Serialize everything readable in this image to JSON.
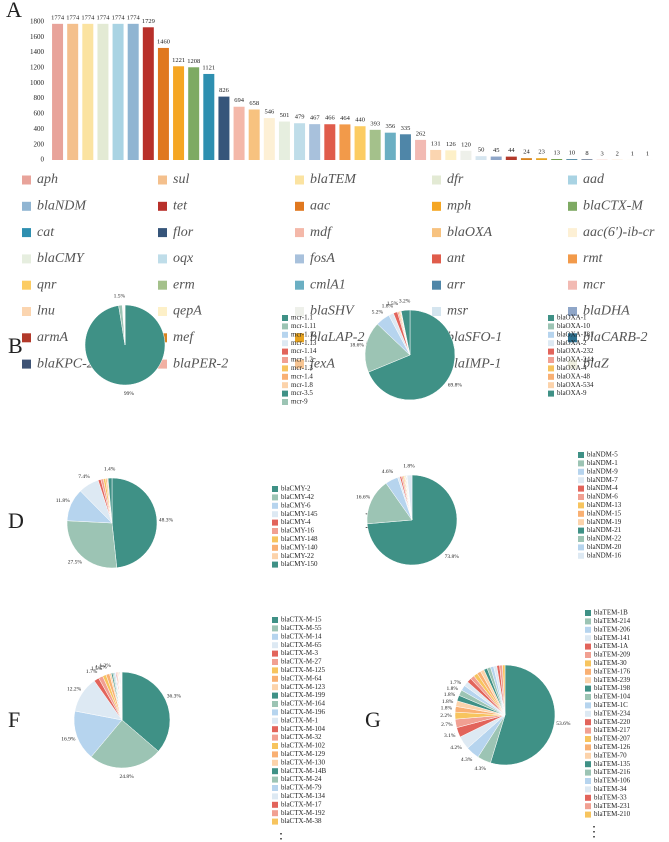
{
  "chart_data": [
    {
      "type": "bar",
      "label": "A",
      "categories": [
        "aph",
        "sul",
        "blaTEM",
        "dfr",
        "aad",
        "blaNDM",
        "tet",
        "aac",
        "mph",
        "blaCTX-M",
        "cat",
        "flor",
        "mdf",
        "blaOXA",
        "aac(6')-ib-cr",
        "blaCMY",
        "oqx",
        "fosA",
        "ant",
        "rmt",
        "qnr",
        "erm",
        "cmlA1",
        "arr",
        "mcr",
        "lnu",
        "qepA",
        "blaSHV",
        "msr",
        "blaDHA",
        "armA",
        "mef",
        "blaLAP-2",
        "blaSFO-1",
        "blaCARB-2",
        "blaKPC-2",
        "blaPER-2",
        "fexA",
        "blaIMP-1",
        "blaZ"
      ],
      "values": [
        1774,
        1774,
        1774,
        1774,
        1774,
        1774,
        1729,
        1460,
        1221,
        1208,
        1121,
        826,
        694,
        658,
        546,
        501,
        479,
        467,
        466,
        464,
        440,
        393,
        356,
        335,
        262,
        131,
        126,
        120,
        50,
        45,
        44,
        24,
        23,
        13,
        10,
        8,
        3,
        2,
        1,
        1
      ],
      "colors": [
        "#e8a39a",
        "#f4c08d",
        "#fbe3a1",
        "#e3ead4",
        "#a9d3e3",
        "#90b5d2",
        "#b8302a",
        "#e0781f",
        "#f5a623",
        "#7eaa63",
        "#2e8fb0",
        "#36557a",
        "#f4b8a9",
        "#f7c27f",
        "#fdf0d5",
        "#e6eedf",
        "#bfdde9",
        "#a8c1dc",
        "#e05c4b",
        "#f29a4a",
        "#fccc62",
        "#a4c18b",
        "#6bafc3",
        "#4f86a8",
        "#f2bab3",
        "#fbd5b0",
        "#fdf0c8",
        "#eef0ea",
        "#d5e5ef",
        "#8fa6c8",
        "#b2392a",
        "#d8831e",
        "#e6a21f",
        "#73a14f",
        "#2e7291",
        "#3e5375",
        "#f1b0a2",
        "#f7c593",
        "#fdeec5",
        "#eeeee0"
      ],
      "ylim": [
        0,
        1850
      ],
      "yticks": [
        0,
        200,
        400,
        600,
        800,
        1000,
        1200,
        1400,
        1600,
        1800
      ]
    },
    {
      "type": "pie",
      "label": "B",
      "categories": [
        "mcr-1.1",
        "mcr-1.11",
        "mcr-1.12",
        "mcr-1.13",
        "mcr-1.14",
        "mcr-1.2",
        "mcr-1.3",
        "mcr-1.4",
        "mcr-1.8",
        "mcr-3.5",
        "mcr-9"
      ],
      "values": [
        99,
        1.5,
        0.2,
        0.2,
        0.1,
        0.1,
        0.1,
        0.1,
        0.1,
        0.1,
        0.1
      ],
      "value_labels": [
        "99%",
        "1.5%",
        null,
        null,
        null,
        null,
        null,
        null,
        null,
        null,
        null
      ],
      "colors": [
        "#3f9186",
        "#9cc4b4",
        "#b6d4ee",
        "#dde9f3",
        "#e2645b",
        "#f1a092",
        "#f7c45e",
        "#f9b073",
        "#fcd3ab"
      ]
    },
    {
      "type": "pie",
      "label": "C",
      "categories": [
        "blaOXA-1",
        "blaOXA-10",
        "blaOXA-181",
        "blaOXA-2",
        "blaOXA-232",
        "blaOXA-244",
        "blaOXA-4",
        "blaOXA-48",
        "blaOXA-534",
        "blaOXA-9"
      ],
      "values": [
        69.8,
        18.6,
        5.2,
        1.8,
        1.5,
        0.5,
        0.4,
        0.3,
        0.2,
        3.2
      ],
      "value_labels": [
        "69.8%",
        "18.6%",
        "5.2%",
        "1.8%",
        "1.5%",
        null,
        null,
        null,
        null,
        "3.2%"
      ],
      "colors": [
        "#3f9186",
        "#9cc4b4",
        "#b6d4ee",
        "#dde9f3",
        "#e2645b",
        "#f1a092",
        "#f7c45e",
        "#f9b073",
        "#fcd3ab"
      ]
    },
    {
      "type": "pie",
      "label": "D",
      "categories": [
        "blaCMY-2",
        "blaCMY-42",
        "blaCMY-6",
        "blaCMY-145",
        "blaCMY-4",
        "blaCMY-16",
        "blaCMY-148",
        "blaCMY-140",
        "blaCMY-22",
        "blaCMY-150"
      ],
      "values": [
        48.3,
        27.5,
        11.8,
        7.4,
        1.0,
        0.9,
        0.8,
        0.5,
        0.4,
        1.4
      ],
      "value_labels": [
        "48.3%",
        "27.5%",
        "11.8%",
        "7.4%",
        null,
        null,
        null,
        null,
        null,
        "1.4%"
      ],
      "colors": [
        "#3f9186",
        "#9cc4b4",
        "#b6d4ee",
        "#dde9f3",
        "#e2645b",
        "#f1a092",
        "#f7c45e",
        "#f9b073",
        "#fcd3ab"
      ]
    },
    {
      "type": "pie",
      "label": "E",
      "categories": [
        "blaNDM-5",
        "blaNDM-1",
        "blaNDM-9",
        "blaNDM-7",
        "blaNDM-4",
        "blaNDM-6",
        "blaNDM-13",
        "blaNDM-15",
        "blaNDM-19",
        "blaNDM-21",
        "blaNDM-22",
        "blaNDM-20",
        "blaNDM-16"
      ],
      "values": [
        73.8,
        16.6,
        4.6,
        0.8,
        0.6,
        0.5,
        0.4,
        0.3,
        0.3,
        0.2,
        0.2,
        0.1,
        1.8
      ],
      "value_labels": [
        "73.8%",
        "16.6%",
        "4.6%",
        null,
        null,
        null,
        null,
        null,
        null,
        null,
        null,
        null,
        "1.8%"
      ],
      "colors": [
        "#3f9186",
        "#9cc4b4",
        "#b6d4ee",
        "#dde9f3",
        "#e2645b",
        "#f1a092",
        "#f7c45e",
        "#f9b073",
        "#fcd3ab"
      ]
    },
    {
      "type": "pie",
      "label": "F",
      "categories": [
        "blaCTX-M-15",
        "blaCTX-M-55",
        "blaCTX-M-14",
        "blaCTX-M-65",
        "blaCTX-M-3",
        "blaCTX-M-27",
        "blaCTX-M-125",
        "blaCTX-M-64",
        "blaCTX-M-123",
        "blaCTX-M-199",
        "blaCTX-M-164",
        "blaCTX-M-196",
        "blaCTX-M-1",
        "blaCTX-M-104",
        "blaCTX-M-32",
        "blaCTX-M-102",
        "blaCTX-M-129",
        "blaCTX-M-130",
        "blaCTX-M-14B",
        "blaCTX-M-24",
        "blaCTX-M-79",
        "blaCTX-M-134",
        "blaCTX-M-17",
        "blaCTX-M-192",
        "blaCTX-M-38"
      ],
      "values": [
        36.3,
        24.8,
        16.9,
        12.2,
        1.7,
        1.5,
        1.2,
        1.2,
        0.6,
        0.5,
        0.4,
        0.4,
        0.3,
        0.3,
        0.3,
        0.2,
        0.2,
        0.2,
        0.2,
        0.1,
        0.1,
        0.1,
        0.1,
        0.1,
        0.1
      ],
      "value_labels": [
        "36.3%",
        "24.8%",
        "16.9%",
        "12.2%",
        "1.7%",
        "1.5%",
        "1.2%",
        "1.2%",
        null,
        null,
        null,
        null,
        null,
        null,
        null,
        null,
        null,
        null,
        null,
        null,
        null,
        null,
        null,
        null,
        null
      ],
      "colors": [
        "#3f9186",
        "#9cc4b4",
        "#b6d4ee",
        "#dde9f3",
        "#e2645b",
        "#f1a092",
        "#f7c45e",
        "#f9b073",
        "#fcd3ab"
      ],
      "more": "⋮"
    },
    {
      "type": "pie",
      "label": "G",
      "categories": [
        "blaTEM-1B",
        "blaTEM-214",
        "blaTEM-206",
        "blaTEM-141",
        "blaTEM-1A",
        "blaTEM-209",
        "blaTEM-30",
        "blaTEM-176",
        "blaTEM-239",
        "blaTEM-198",
        "blaTEM-104",
        "blaTEM-1C",
        "blaTEM-234",
        "blaTEM-220",
        "blaTEM-217",
        "blaTEM-207",
        "blaTEM-126",
        "blaTEM-70",
        "blaTEM-135",
        "blaTEM-216",
        "blaTEM-106",
        "blaTEM-34",
        "blaTEM-33",
        "blaTEM-231",
        "blaTEM-210"
      ],
      "values": [
        53.6,
        4.3,
        4.3,
        4.2,
        3.1,
        2.7,
        2.2,
        1.8,
        1.8,
        1.8,
        1.8,
        1.7,
        1.5,
        1.4,
        1.3,
        1.3,
        1.2,
        1.2,
        1.1,
        1.1,
        1.0,
        1.0,
        0.9,
        0.9,
        0.8
      ],
      "value_labels": [
        "53.6%",
        "4.3%",
        "4.3%",
        "4.2%",
        "3.1%",
        "2.7%",
        "2.2%",
        "1.8%",
        "1.8%",
        "1.8%",
        "1.8%",
        "1.7%",
        null,
        null,
        null,
        null,
        null,
        null,
        null,
        null,
        null,
        null,
        null,
        null,
        null
      ],
      "colors": [
        "#3f9186",
        "#9cc4b4",
        "#b6d4ee",
        "#dde9f3",
        "#e2645b",
        "#f1a092",
        "#f7c45e",
        "#f9b073",
        "#fcd3ab"
      ],
      "more": "⋮"
    }
  ]
}
